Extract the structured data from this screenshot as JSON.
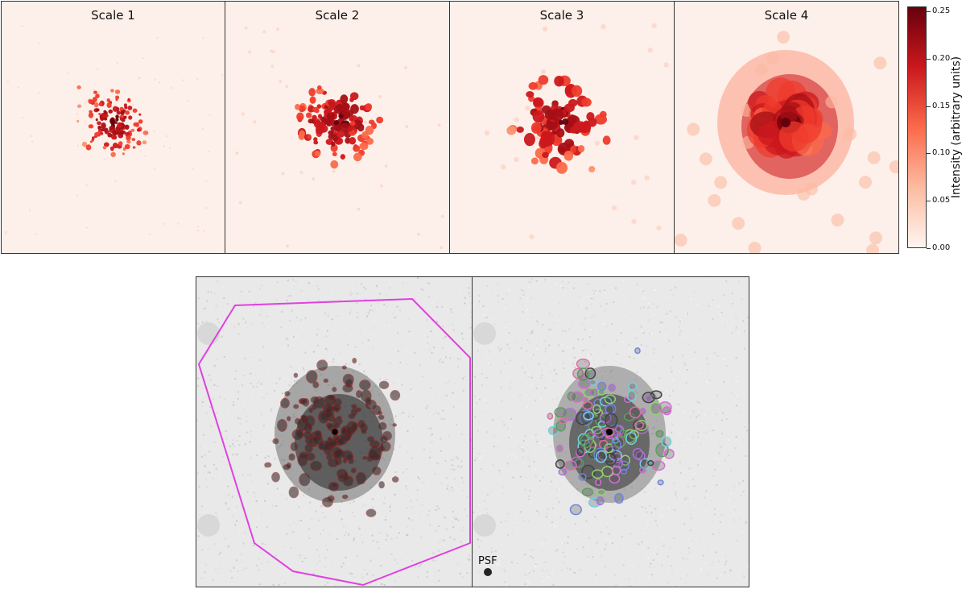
{
  "figure": {
    "panels": [
      {
        "title": "Scale 1"
      },
      {
        "title": "Scale 2"
      },
      {
        "title": "Scale 3"
      },
      {
        "title": "Scale 4"
      }
    ],
    "colorbar": {
      "label": "Intensity (arbitrary units)",
      "ticks": [
        "0.00",
        "0.05",
        "0.10",
        "0.15",
        "0.20",
        "0.25"
      ],
      "tick_values": [
        0.0,
        0.05,
        0.1,
        0.15,
        0.2,
        0.25
      ],
      "max": 0.255,
      "colors": [
        "#fff5f0",
        "#fcbba1",
        "#fb6a4a",
        "#cb181d",
        "#67000d"
      ]
    },
    "bottom": {
      "psf_label": "PSF",
      "polygon_color": "#e040e0",
      "contour_color": "#8b1a1a"
    }
  }
}
